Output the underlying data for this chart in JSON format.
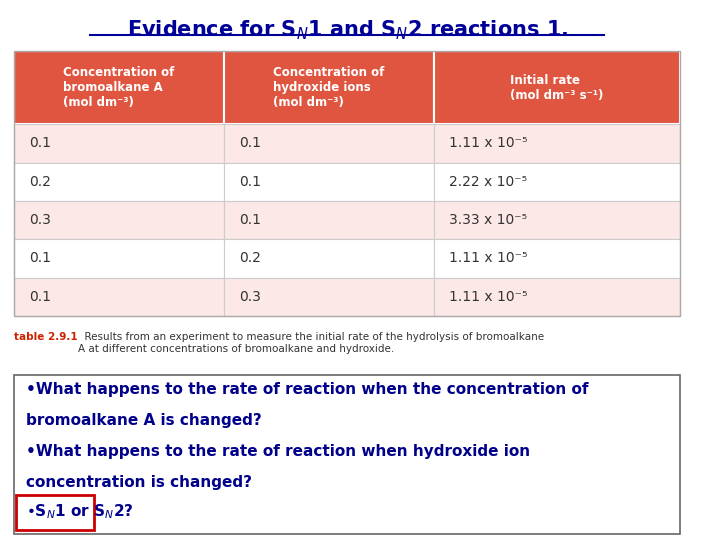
{
  "bg_color": "#ffffff",
  "header_bg": "#e05540",
  "header_text_color": "#ffffff",
  "row_bg_light": "#fce8e6",
  "row_bg_white": "#ffffff",
  "col_headers": [
    "Concentration of\nbromoalkane A\n(mol dm⁻³)",
    "Concentration of\nhydroxide ions\n(mol dm⁻³)",
    "Initial rate\n(mol dm⁻³ s⁻¹)"
  ],
  "rows": [
    [
      "0.1",
      "0.1",
      "1.11 x 10⁻⁵"
    ],
    [
      "0.2",
      "0.1",
      "2.22 x 10⁻⁵"
    ],
    [
      "0.3",
      "0.1",
      "3.33 x 10⁻⁵"
    ],
    [
      "0.1",
      "0.2",
      "1.11 x 10⁻⁵"
    ],
    [
      "0.1",
      "0.3",
      "1.11 x 10⁻⁵"
    ]
  ],
  "caption_red": "table 2.9.1",
  "caption_rest": "  Results from an experiment to measure the initial rate of the hydrolysis of bromoalkane\nA at different concentrations of bromoalkane and hydroxide.",
  "bullet_lines": [
    "•What happens to the rate of reaction when the concentration of",
    "bromoalkane A is changed?",
    "•What happens to the rate of reaction when hydroxide ion",
    "concentration is changed?"
  ],
  "bullet_color": "#00008b",
  "border_red": "#cc0000",
  "title_color": "#000099",
  "underline_color": "#000099"
}
